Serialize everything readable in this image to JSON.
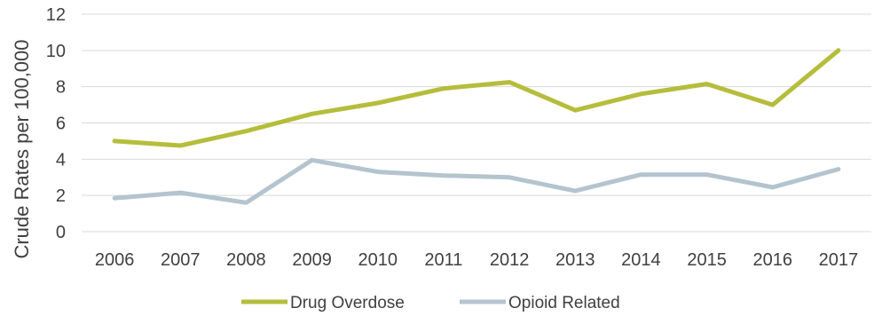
{
  "chart_data": {
    "type": "line",
    "title": "",
    "xlabel": "",
    "ylabel": "Crude Rates per 100,000",
    "ylim": [
      0,
      12
    ],
    "yticks": [
      "0",
      "2",
      "4",
      "6",
      "8",
      "10",
      "12"
    ],
    "categories": [
      "2006",
      "2007",
      "2008",
      "2009",
      "2010",
      "2011",
      "2012",
      "2013",
      "2014",
      "2015",
      "2016",
      "2017"
    ],
    "grid": true,
    "legend_position": "bottom",
    "series": [
      {
        "name": "Drug Overdose",
        "color": "#b5bd3c",
        "values": [
          5.0,
          4.75,
          5.55,
          6.5,
          7.1,
          7.9,
          8.25,
          6.7,
          7.6,
          8.15,
          7.0,
          10.0
        ]
      },
      {
        "name": "Opioid Related",
        "color": "#b4c4cf",
        "values": [
          1.85,
          2.15,
          1.6,
          3.95,
          3.3,
          3.1,
          3.0,
          2.25,
          3.15,
          3.15,
          2.45,
          3.45
        ]
      }
    ]
  }
}
